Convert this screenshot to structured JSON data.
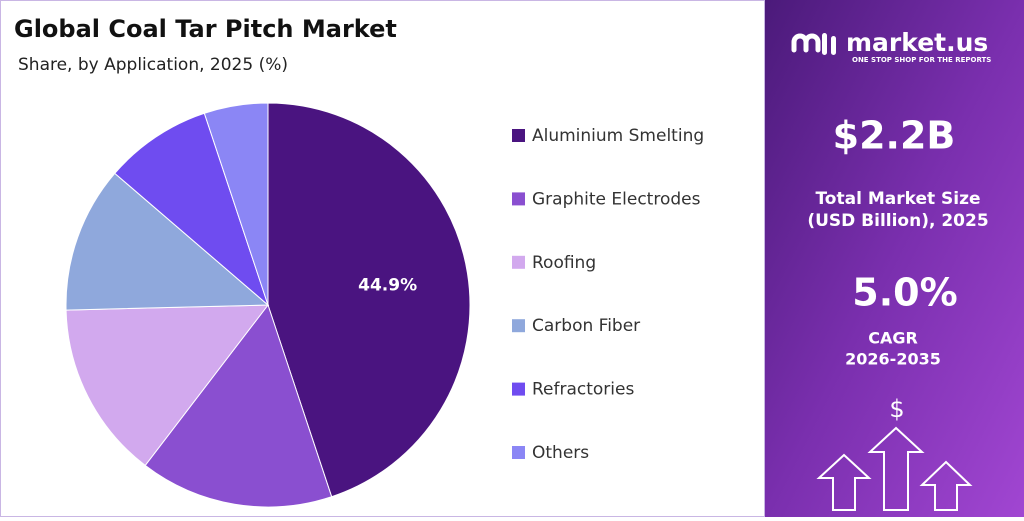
{
  "chart_data": {
    "type": "pie",
    "title": "Global Coal Tar Pitch Market",
    "subtitle": "Share, by Application, 2025 (%)",
    "categories": [
      "Aluminium Smelting",
      "Graphite Electrodes",
      "Roofing",
      "Carbon Fiber",
      "Refractories",
      "Others"
    ],
    "values": [
      44.9,
      15.5,
      14.2,
      11.7,
      8.6,
      5.1
    ],
    "value_labels": [
      "44.9%",
      null,
      null,
      null,
      null,
      null
    ],
    "colors": [
      "#4a1480",
      "#8a4fd0",
      "#d2a9ee",
      "#8fa8dc",
      "#6f4cf0",
      "#8b86f5"
    ],
    "legend": "right"
  },
  "panel": {
    "brand": "market.us",
    "tagline": "ONE STOP SHOP FOR THE REPORTS",
    "market_size": "$2.2B",
    "market_size_label_1": "Total Market Size",
    "market_size_label_2": "(USD Billion), 2025",
    "cagr": "5.0%",
    "cagr_label_1": "CAGR",
    "cagr_label_2": "2026-2035",
    "icon_symbol": "$"
  }
}
